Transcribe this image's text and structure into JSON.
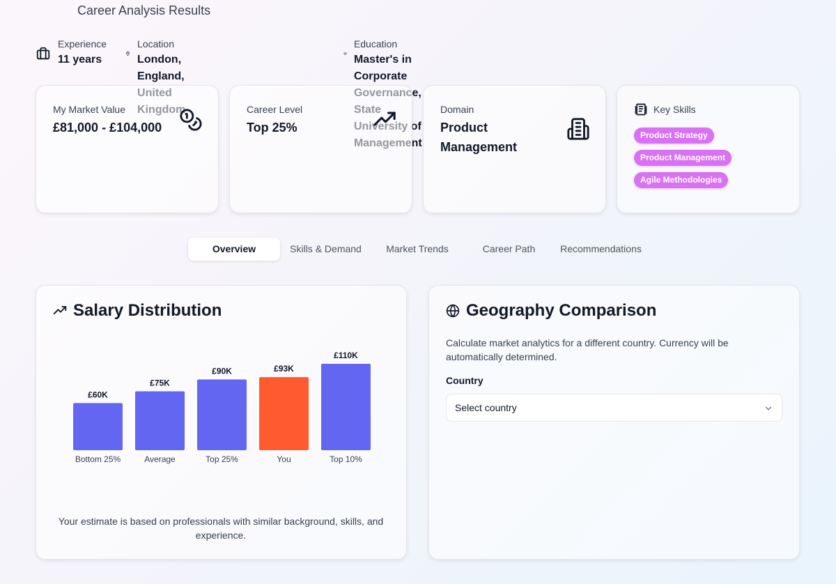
{
  "page": {
    "title": "Career Analysis Results"
  },
  "profile": {
    "experience": {
      "label": "Experience",
      "value": "11 years",
      "icon": "briefcase-icon"
    },
    "location": {
      "label": "Location",
      "value": "London, England, United Kingdom",
      "icon": "map-pin-icon"
    },
    "education": {
      "label": "Education",
      "value": "Master's in Corporate Governance, State University of Management",
      "icon": "graduation-cap-icon"
    }
  },
  "cards": {
    "market_value": {
      "label": "My Market Value",
      "value": "£81,000 - £104,000",
      "icon": "coins-icon"
    },
    "career_level": {
      "label": "Career Level",
      "value": "Top 25%",
      "icon": "trending-up-icon"
    },
    "domain": {
      "label": "Domain",
      "value": "Product Management",
      "icon": "building-icon"
    },
    "key_skills": {
      "label": "Key Skills",
      "icon": "book-icon",
      "skills": [
        "Product Strategy",
        "Product Management",
        "Agile Methodologies"
      ]
    }
  },
  "tabs": [
    {
      "label": "Overview",
      "active": true
    },
    {
      "label": "Skills & Demand",
      "active": false
    },
    {
      "label": "Market Trends",
      "active": false
    },
    {
      "label": "Career Path",
      "active": false
    },
    {
      "label": "Recommendations",
      "active": false
    }
  ],
  "salary": {
    "title": "Salary Distribution",
    "icon": "trending-up-icon",
    "note": "Your estimate is based on professionals with similar background, skills, and experience."
  },
  "chart_data": {
    "type": "bar",
    "categories": [
      "Bottom 25%",
      "Average",
      "Top 25%",
      "You",
      "Top 10%"
    ],
    "values": [
      60,
      75,
      90,
      93,
      110
    ],
    "data_labels": [
      "£60K",
      "£75K",
      "£90K",
      "£93K",
      "£110K"
    ],
    "colors": [
      "#6366f1",
      "#6366f1",
      "#6366f1",
      "#ff5b2e",
      "#6366f1"
    ],
    "ylim": [
      0,
      110
    ],
    "grid": false,
    "legend": "none"
  },
  "geography": {
    "title": "Geography Comparison",
    "icon": "globe-icon",
    "description": "Calculate market analytics for a different country. Currency will be automatically determined.",
    "country_label": "Country",
    "select_value": "Select country"
  }
}
